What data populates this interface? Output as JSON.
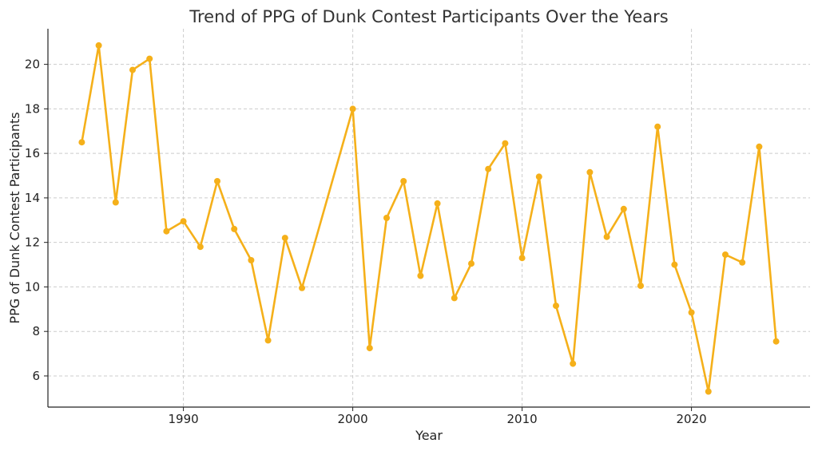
{
  "chart_data": {
    "type": "line",
    "title": "Trend of PPG of Dunk Contest Participants Over the Years",
    "xlabel": "Year",
    "ylabel": "PPG of Dunk Contest Participants",
    "xlim": [
      1982,
      2027
    ],
    "ylim": [
      4.6,
      21.6
    ],
    "xticks": [
      1990,
      2000,
      2010,
      2020
    ],
    "yticks": [
      6,
      8,
      10,
      12,
      14,
      16,
      18,
      20
    ],
    "grid": true,
    "line_color": "#f5b01a",
    "series": [
      {
        "x": [
          1984,
          1985,
          1986,
          1987,
          1988,
          1989,
          1990,
          1991,
          1992,
          1993,
          1994,
          1995,
          1996,
          1997,
          2000,
          2001,
          2002,
          2003,
          2004,
          2005,
          2006,
          2007,
          2008,
          2009,
          2010,
          2011,
          2012,
          2013,
          2014,
          2015,
          2016,
          2017,
          2018,
          2019,
          2020,
          2021,
          2022,
          2023,
          2024,
          2025
        ],
        "values": [
          16.5,
          20.85,
          13.8,
          19.75,
          20.25,
          12.5,
          12.95,
          11.8,
          14.75,
          12.6,
          11.2,
          7.6,
          12.2,
          9.95,
          18.0,
          7.25,
          13.1,
          14.75,
          10.5,
          13.75,
          9.5,
          11.05,
          15.3,
          16.45,
          11.3,
          14.95,
          9.15,
          6.55,
          15.15,
          12.25,
          13.5,
          10.05,
          17.2,
          11.0,
          8.85,
          5.3,
          11.45,
          11.1,
          16.3,
          7.55
        ]
      }
    ]
  }
}
